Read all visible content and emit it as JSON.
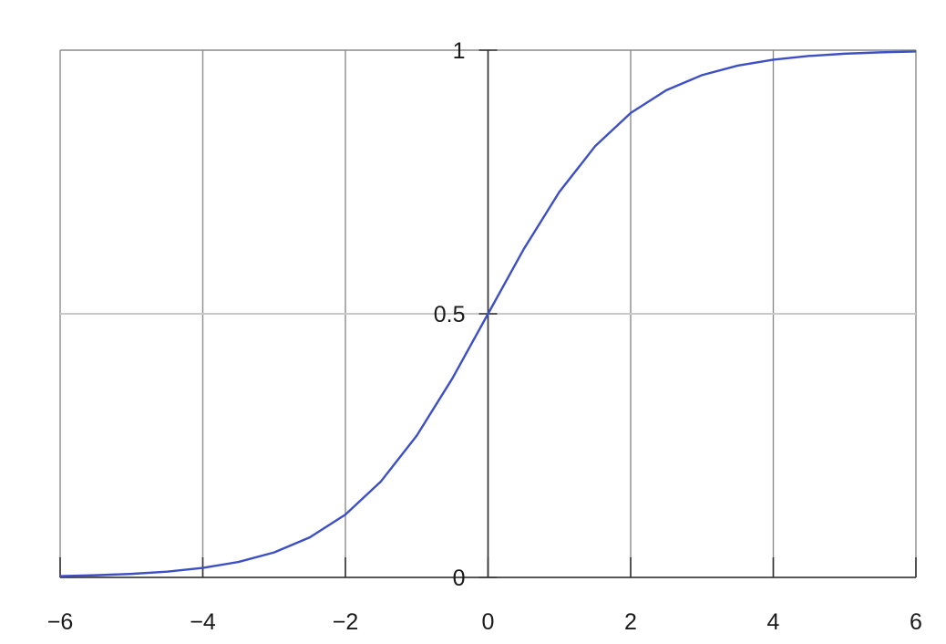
{
  "chart_data": {
    "type": "line",
    "title": "",
    "xlabel": "",
    "ylabel": "",
    "xlim": [
      -6,
      6
    ],
    "ylim": [
      0,
      1
    ],
    "grid": true,
    "x_ticks": [
      -6,
      -4,
      -2,
      0,
      2,
      4,
      6
    ],
    "x_tick_labels": [
      "−6",
      "−4",
      "−2",
      "0",
      "2",
      "4",
      "6"
    ],
    "y_ticks": [
      0,
      0.5,
      1
    ],
    "y_tick_labels": [
      "0",
      "0.5",
      "1"
    ],
    "series": [
      {
        "color": "#3d4fc4",
        "x": [
          -6,
          -5.5,
          -5,
          -4.5,
          -4,
          -3.5,
          -3,
          -2.5,
          -2,
          -1.5,
          -1,
          -0.5,
          0,
          0.5,
          1,
          1.5,
          2,
          2.5,
          3,
          3.5,
          4,
          4.5,
          5,
          5.5,
          6
        ],
        "y": [
          0.0025,
          0.0041,
          0.0067,
          0.011,
          0.018,
          0.0293,
          0.0474,
          0.0759,
          0.1192,
          0.1824,
          0.2689,
          0.3775,
          0.5,
          0.6225,
          0.7311,
          0.8176,
          0.8808,
          0.9241,
          0.9526,
          0.9707,
          0.982,
          0.989,
          0.9933,
          0.9959,
          0.9975
        ]
      }
    ],
    "colors": {
      "grid_major": "#8c8c8c",
      "grid_minor": "#c8c8c8",
      "axis": "#333333",
      "text": "#1a1a1a"
    }
  }
}
